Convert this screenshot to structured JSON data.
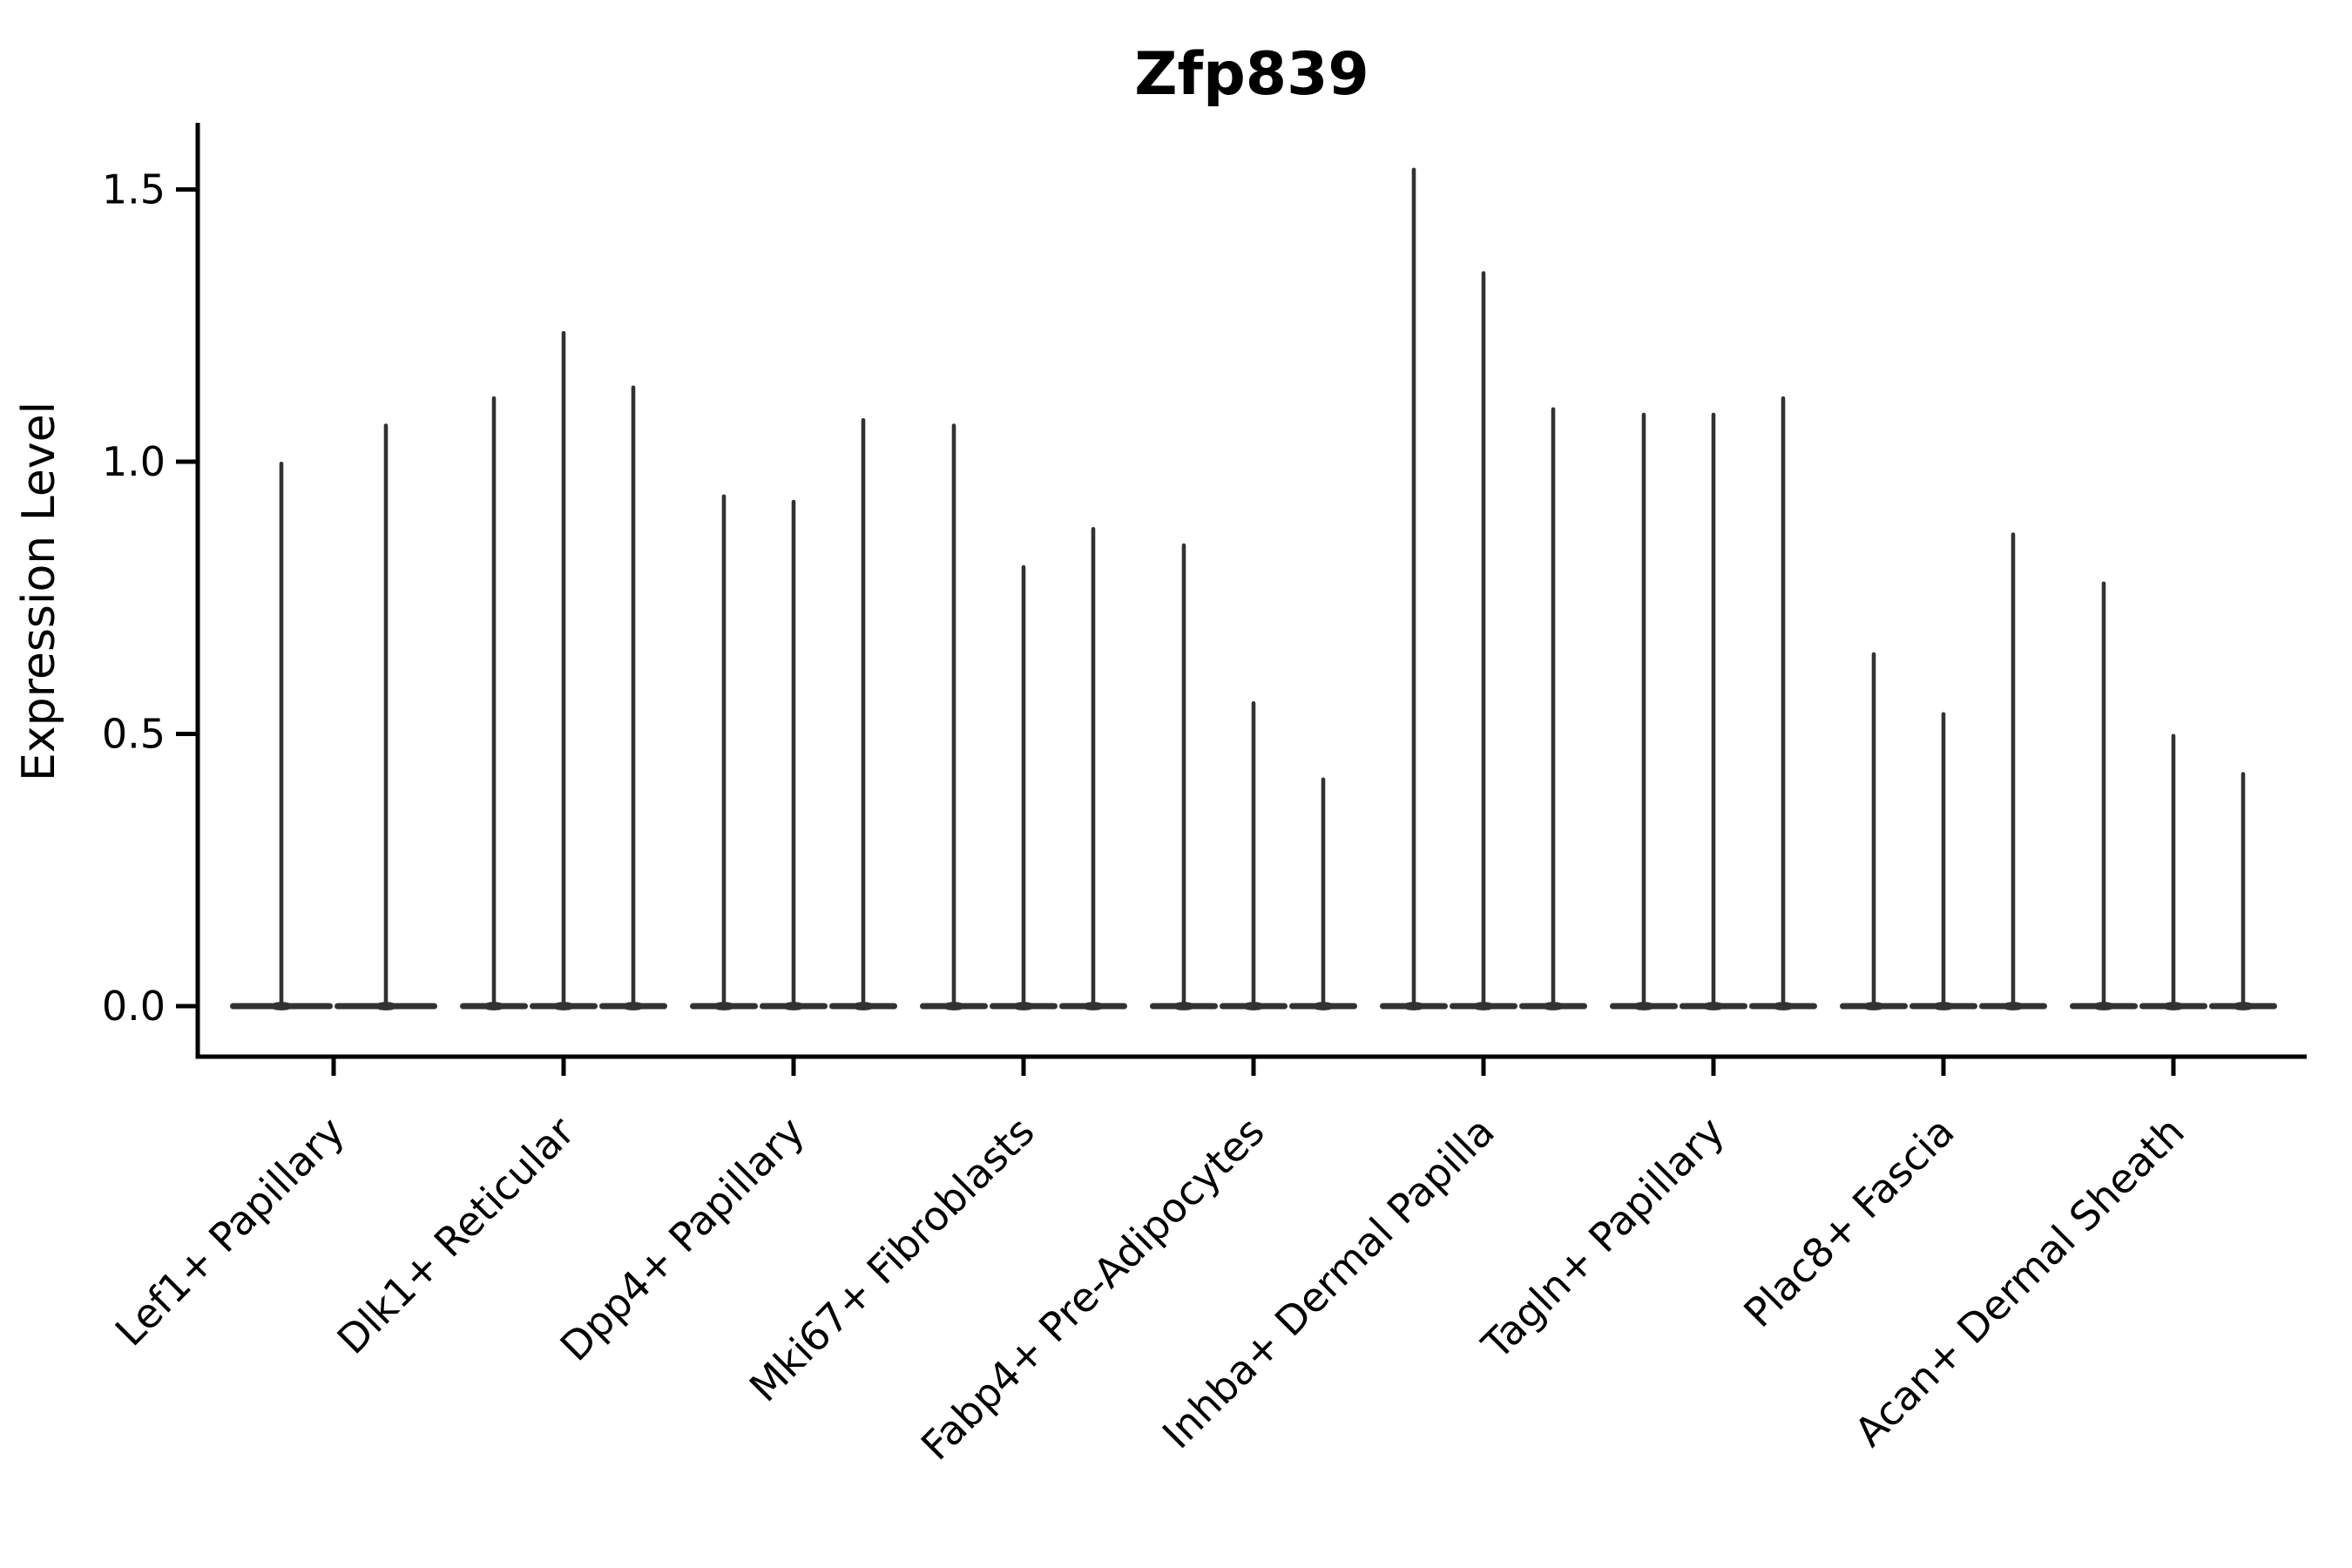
{
  "chart_data": {
    "type": "violin",
    "title": "Zfp839",
    "ylabel": "Expression Level",
    "xlabel": "",
    "ylim": [
      -0.09,
      1.62
    ],
    "yticks": [
      0.0,
      0.5,
      1.0,
      1.5
    ],
    "grid": false,
    "legend": false,
    "violin_color": "#323232",
    "axis_color": "#000000",
    "style_note": "needle-thin violins collapsed to a flat base at 0 with a narrow spike up to the max expression value; x labels rotated 45 degrees",
    "categories": [
      "Lef1+ Papillary",
      "Dlk1+ Reticular",
      "Dpp4+ Papillary",
      "Mki67+ Fibroblasts",
      "Fabp4+ Pre-Adipocytes",
      "Inhba+ Dermal Papilla",
      "Tagln+ Papillary",
      "Plac8+ Fascia",
      "Acan+ Dermal Sheath"
    ],
    "series": [
      {
        "category": "Lef1+ Papillary",
        "violin_max_values": [
          1.0,
          1.07
        ]
      },
      {
        "category": "Dlk1+ Reticular",
        "violin_max_values": [
          1.12,
          1.24,
          1.14
        ]
      },
      {
        "category": "Dpp4+ Papillary",
        "violin_max_values": [
          0.94,
          0.93,
          1.08
        ]
      },
      {
        "category": "Mki67+ Fibroblasts",
        "violin_max_values": [
          1.07,
          0.81,
          0.88
        ]
      },
      {
        "category": "Fabp4+ Pre-Adipocytes",
        "violin_max_values": [
          0.85,
          0.56,
          0.42
        ]
      },
      {
        "category": "Inhba+ Dermal Papilla",
        "violin_max_values": [
          1.54,
          1.35,
          1.1
        ]
      },
      {
        "category": "Tagln+ Papillary",
        "violin_max_values": [
          1.09,
          1.09,
          1.12
        ]
      },
      {
        "category": "Plac8+ Fascia",
        "violin_max_values": [
          0.65,
          0.54,
          0.87
        ]
      },
      {
        "category": "Acan+ Dermal Sheath",
        "violin_max_values": [
          0.78,
          0.5,
          0.43
        ]
      }
    ]
  }
}
